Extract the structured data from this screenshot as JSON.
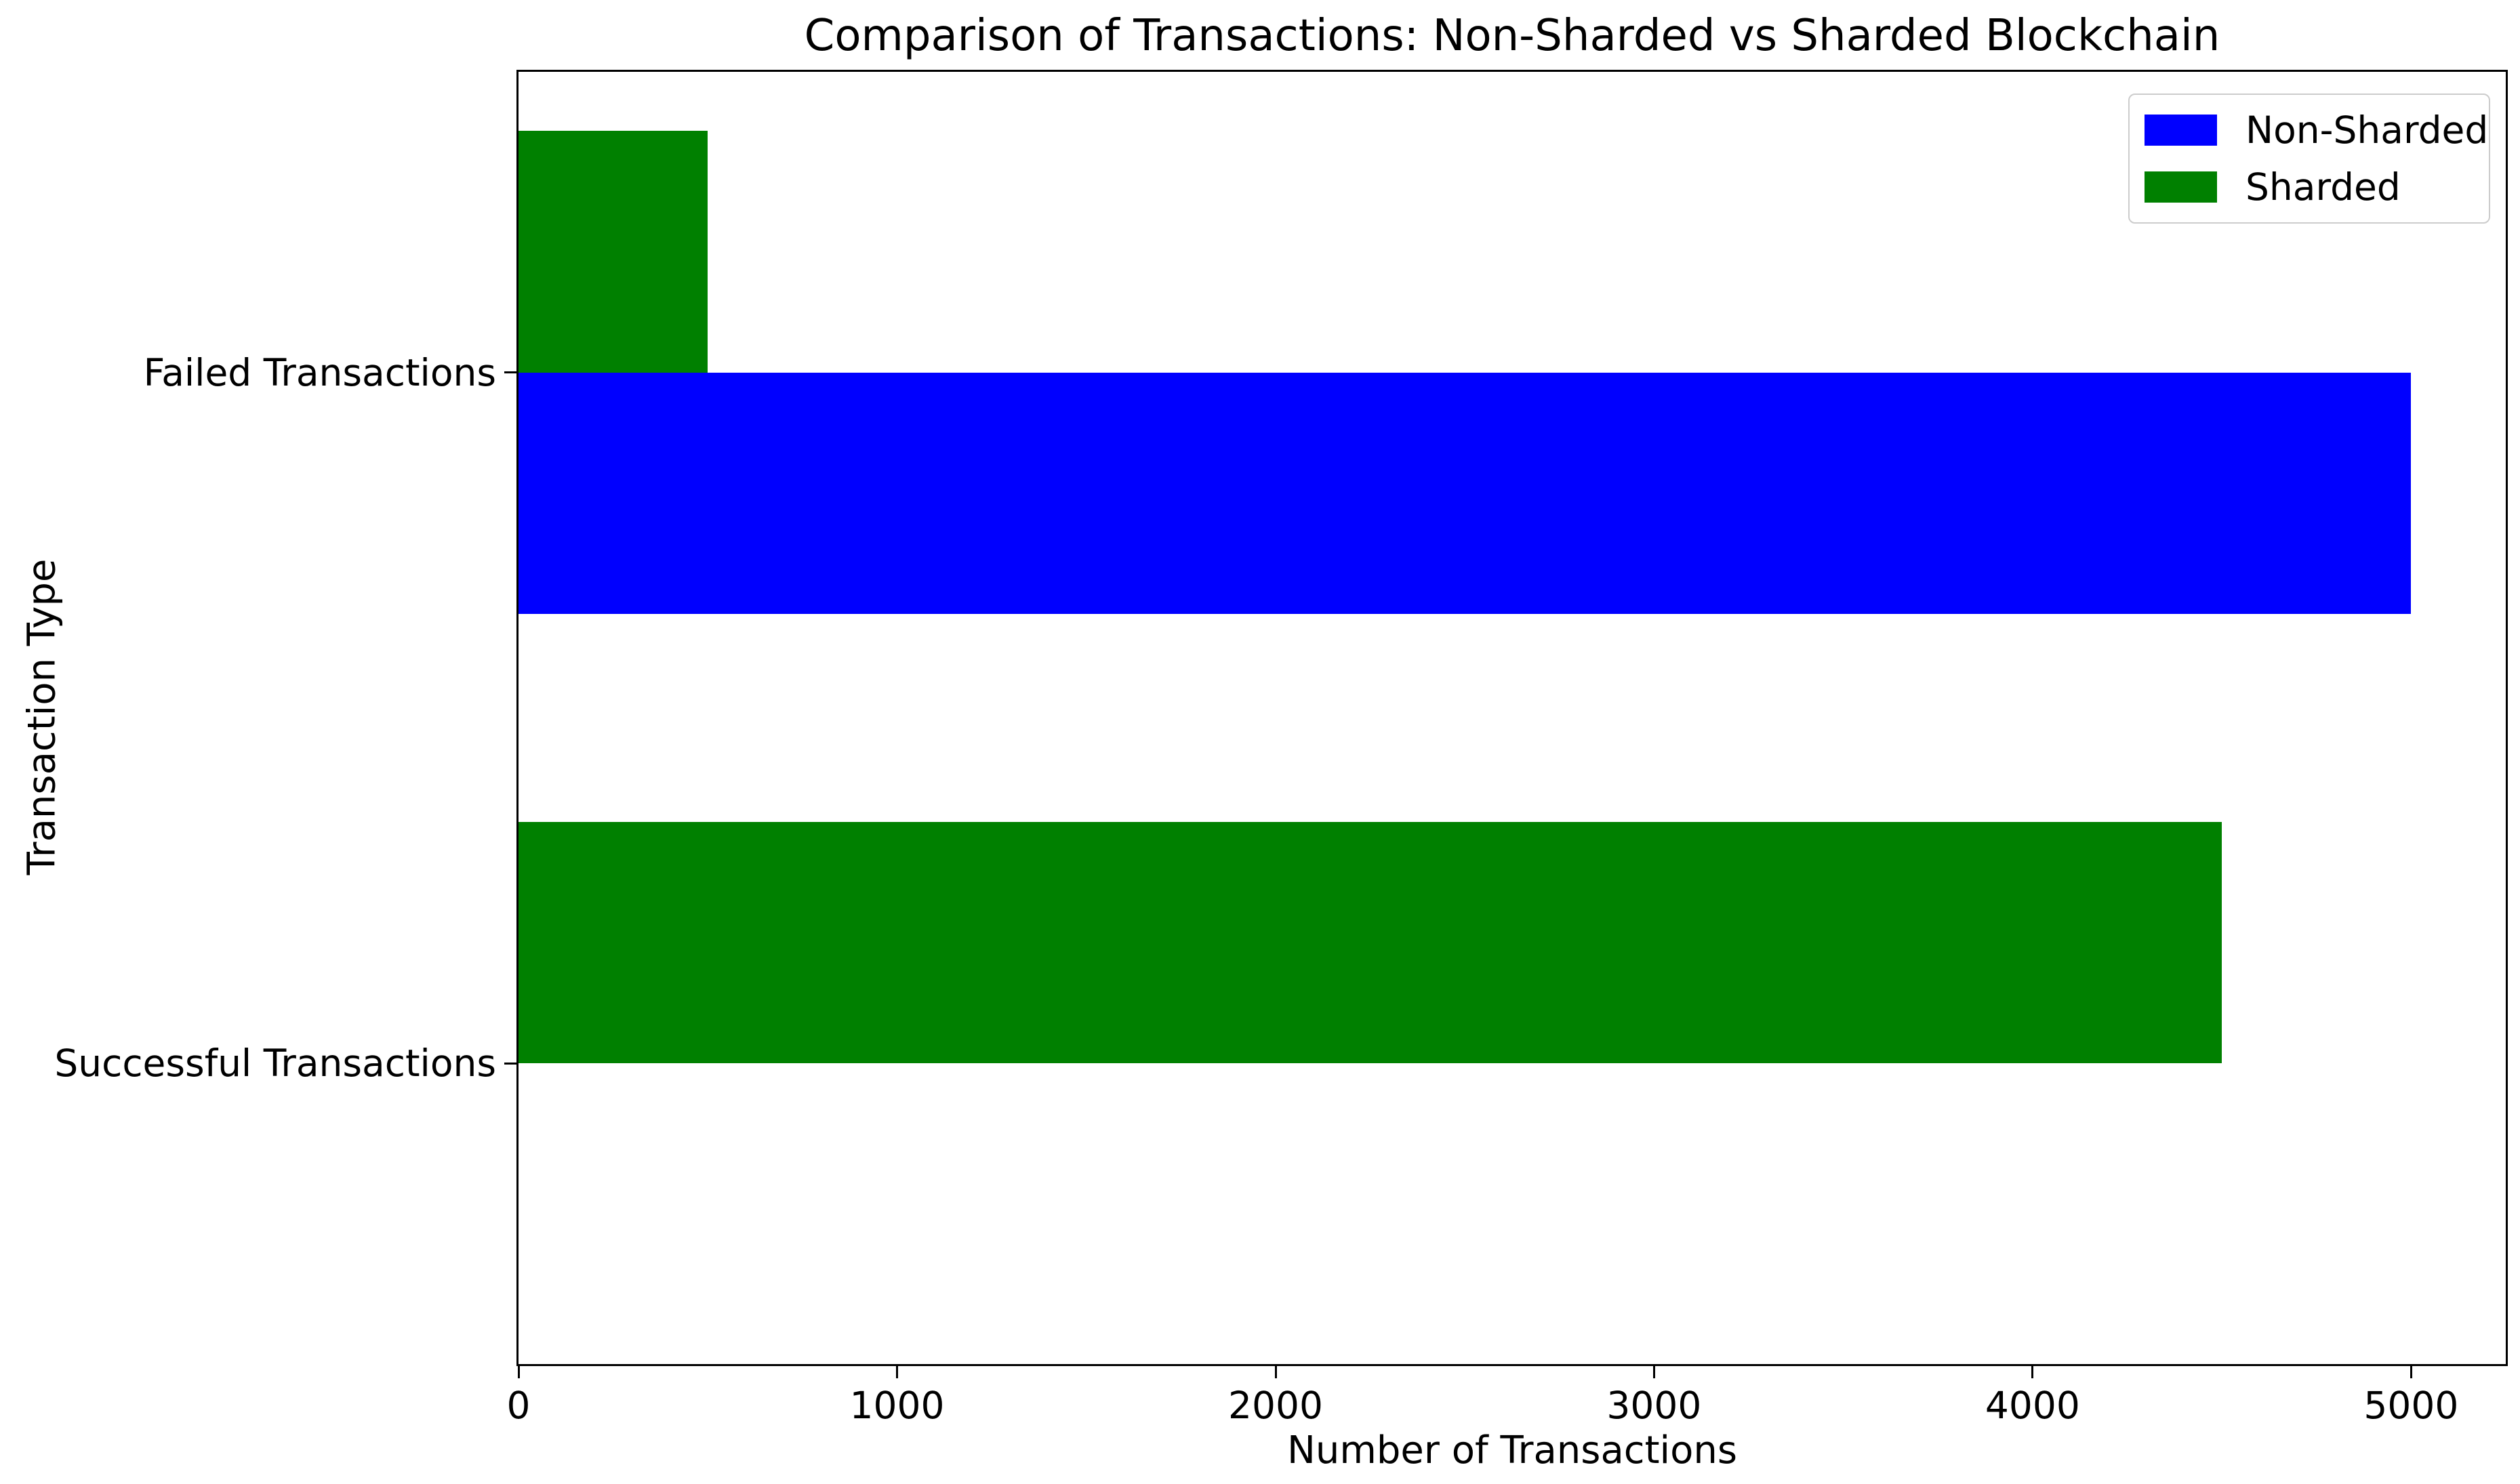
{
  "chart_data": {
    "type": "bar",
    "orientation": "horizontal",
    "title": "Comparison of Transactions: Non-Sharded vs Sharded Blockchain",
    "xlabel": "Number of Transactions",
    "ylabel": "Transaction Type",
    "categories": [
      "Failed Transactions",
      "Successful Transactions"
    ],
    "series": [
      {
        "name": "Non-Sharded",
        "color": "#0000ff",
        "values": [
          5000,
          0
        ]
      },
      {
        "name": "Sharded",
        "color": "#008000",
        "values": [
          500,
          4500
        ]
      }
    ],
    "x_ticks": [
      0,
      1000,
      2000,
      3000,
      4000,
      5000
    ],
    "xlim": [
      0,
      5250
    ],
    "bar_height": 0.35,
    "grid": false,
    "legend_position": "upper right"
  }
}
